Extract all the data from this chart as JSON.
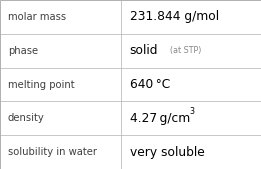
{
  "rows": [
    {
      "label": "molar mass",
      "value": "231.844 g/mol",
      "type": "plain"
    },
    {
      "label": "phase",
      "value": "solid",
      "suffix": " (at STP)",
      "type": "phase"
    },
    {
      "label": "melting point",
      "value": "640 °C",
      "type": "plain"
    },
    {
      "label": "density",
      "value": "4.27 g/cm",
      "superscript": "3",
      "type": "super"
    },
    {
      "label": "solubility in water",
      "value": "very soluble",
      "type": "plain"
    }
  ],
  "n_rows": 5,
  "col_split": 0.462,
  "bg_color": "#ffffff",
  "border_color": "#b0b0b0",
  "label_color": "#404040",
  "value_color": "#000000",
  "suffix_color": "#888888",
  "label_fontsize": 7.2,
  "value_fontsize": 8.8,
  "suffix_fontsize": 5.8,
  "super_fontsize": 5.8,
  "font_family": "DejaVu Sans"
}
